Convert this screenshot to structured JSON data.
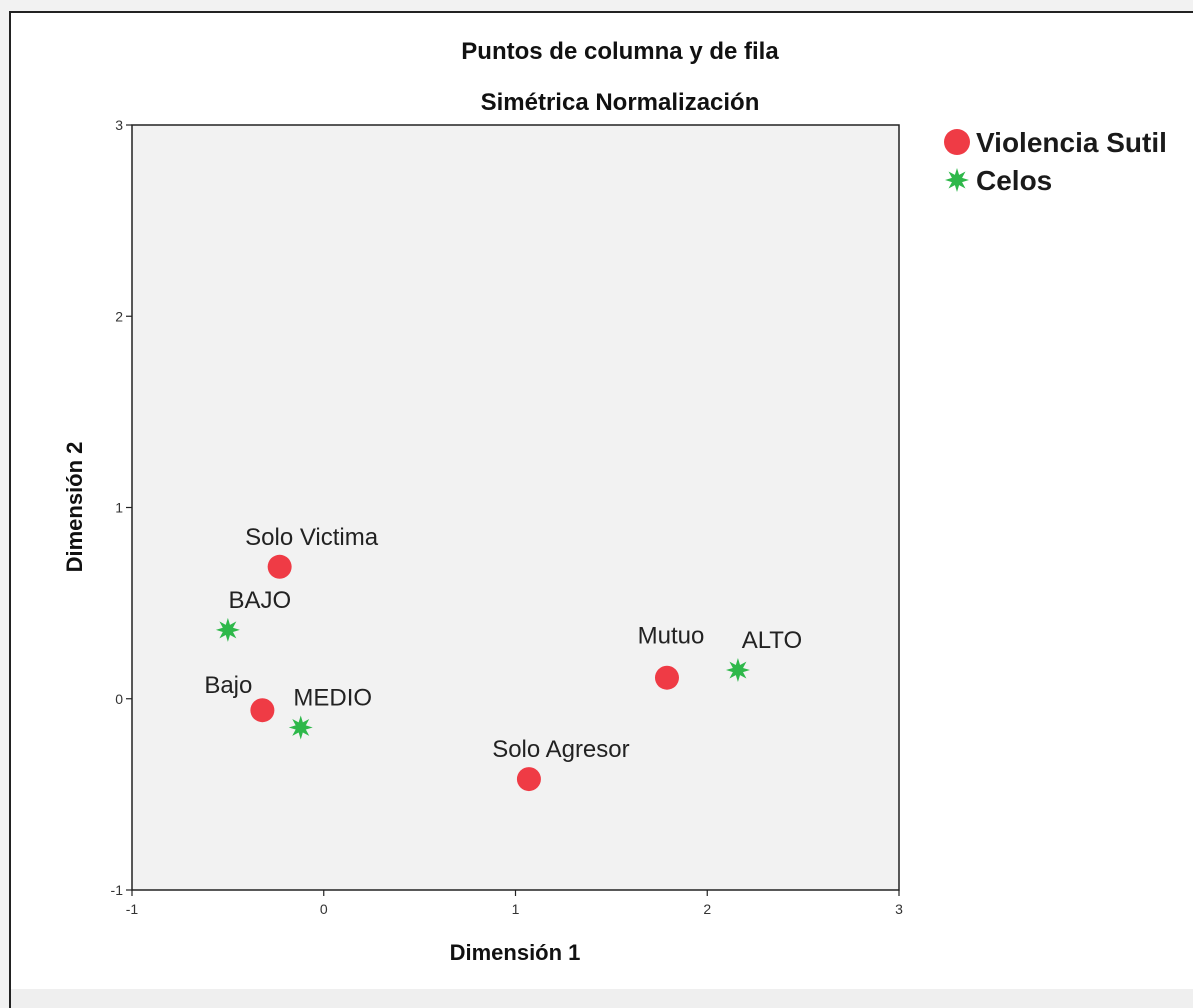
{
  "chart_data": {
    "type": "scatter",
    "title": "Puntos de columna y de fila",
    "subtitle": "Simétrica Normalización",
    "xlabel": "Dimensión 1",
    "ylabel": "Dimensión 2",
    "xlim": [
      -1,
      3
    ],
    "ylim": [
      -1,
      3
    ],
    "xticks": [
      "-1",
      "0",
      "1",
      "2",
      "3"
    ],
    "yticks": [
      "-1",
      "0",
      "1",
      "2",
      "3"
    ],
    "grid": false,
    "legend": "right",
    "plot_background": "#f2f2f2",
    "series": [
      {
        "name": "Violencia Sutil",
        "marker": "circle",
        "color": "#ef3b45",
        "points": [
          {
            "label": "Solo Victima",
            "x": -0.23,
            "y": 0.69
          },
          {
            "label": "Bajo",
            "x": -0.32,
            "y": -0.06
          },
          {
            "label": "Solo Agresor",
            "x": 1.07,
            "y": -0.42
          },
          {
            "label": "Mutuo",
            "x": 1.79,
            "y": 0.11
          }
        ]
      },
      {
        "name": "Celos",
        "marker": "star",
        "color": "#2eb84a",
        "points": [
          {
            "label": "BAJO",
            "x": -0.5,
            "y": 0.36
          },
          {
            "label": "MEDIO",
            "x": -0.12,
            "y": -0.15
          },
          {
            "label": "ALTO",
            "x": 2.16,
            "y": 0.15
          }
        ]
      }
    ]
  }
}
